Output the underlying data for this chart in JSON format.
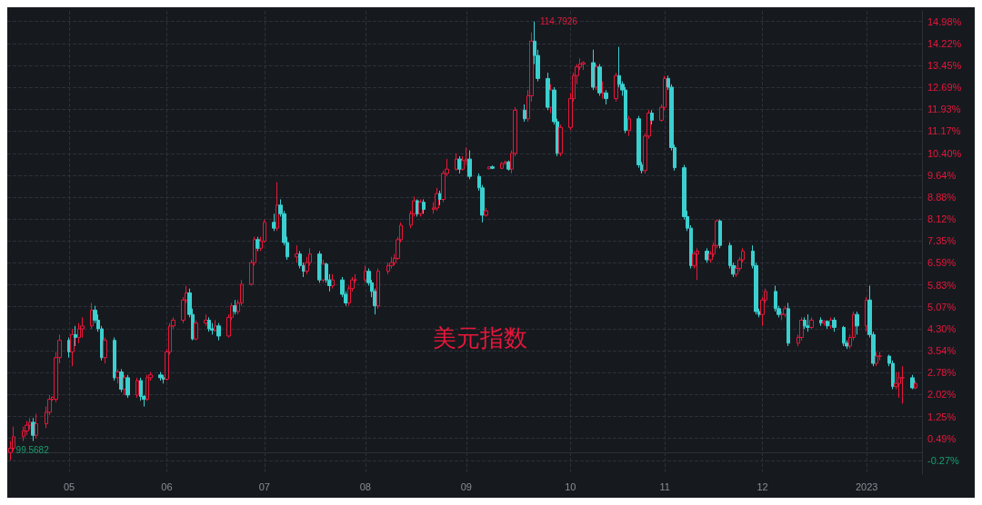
{
  "chart_data": {
    "type": "candlestick",
    "title": "美元指数",
    "x": [
      "2022-04-14",
      "2022-04-15",
      "2022-04-18",
      "2022-04-19",
      "2022-04-20",
      "2022-04-21",
      "2022-04-22",
      "2022-04-25",
      "2022-04-26",
      "2022-04-27",
      "2022-04-28",
      "2022-04-29",
      "2022-05-02",
      "2022-05-03",
      "2022-05-04",
      "2022-05-05",
      "2022-05-06",
      "2022-05-09",
      "2022-05-10",
      "2022-05-11",
      "2022-05-12",
      "2022-05-13",
      "2022-05-16",
      "2022-05-17",
      "2022-05-18",
      "2022-05-19",
      "2022-05-20",
      "2022-05-23",
      "2022-05-24",
      "2022-05-25",
      "2022-05-26",
      "2022-05-27",
      "2022-05-30",
      "2022-05-31",
      "2022-06-01",
      "2022-06-02",
      "2022-06-03",
      "2022-06-06",
      "2022-06-07",
      "2022-06-08",
      "2022-06-09",
      "2022-06-10",
      "2022-06-13",
      "2022-06-14",
      "2022-06-15",
      "2022-06-16",
      "2022-06-17",
      "2022-06-20",
      "2022-06-21",
      "2022-06-22",
      "2022-06-23",
      "2022-06-24",
      "2022-06-27",
      "2022-06-28",
      "2022-06-29",
      "2022-06-30",
      "2022-07-01",
      "2022-07-04",
      "2022-07-05",
      "2022-07-06",
      "2022-07-07",
      "2022-07-08",
      "2022-07-11",
      "2022-07-12",
      "2022-07-13",
      "2022-07-14",
      "2022-07-15",
      "2022-07-18",
      "2022-07-19",
      "2022-07-20",
      "2022-07-21",
      "2022-07-22",
      "2022-07-25",
      "2022-07-26",
      "2022-07-27",
      "2022-07-28",
      "2022-07-29",
      "2022-08-01",
      "2022-08-02",
      "2022-08-03",
      "2022-08-04",
      "2022-08-05",
      "2022-08-08",
      "2022-08-09",
      "2022-08-10",
      "2022-08-11",
      "2022-08-12",
      "2022-08-15",
      "2022-08-16",
      "2022-08-17",
      "2022-08-18",
      "2022-08-19",
      "2022-08-22",
      "2022-08-23",
      "2022-08-24",
      "2022-08-25",
      "2022-08-26",
      "2022-08-29",
      "2022-08-30",
      "2022-08-31",
      "2022-09-01",
      "2022-09-02",
      "2022-09-05",
      "2022-09-06",
      "2022-09-07",
      "2022-09-08",
      "2022-09-09",
      "2022-09-12",
      "2022-09-13",
      "2022-09-14",
      "2022-09-15",
      "2022-09-16",
      "2022-09-19",
      "2022-09-20",
      "2022-09-21",
      "2022-09-22",
      "2022-09-23",
      "2022-09-26",
      "2022-09-27",
      "2022-09-28",
      "2022-09-29",
      "2022-09-30",
      "2022-10-03",
      "2022-10-04",
      "2022-10-05",
      "2022-10-06",
      "2022-10-07",
      "2022-10-10",
      "2022-10-11",
      "2022-10-12",
      "2022-10-13",
      "2022-10-14",
      "2022-10-17",
      "2022-10-18",
      "2022-10-19",
      "2022-10-20",
      "2022-10-21",
      "2022-10-24",
      "2022-10-25",
      "2022-10-26",
      "2022-10-27",
      "2022-10-28",
      "2022-10-31",
      "2022-11-01",
      "2022-11-02",
      "2022-11-03",
      "2022-11-04",
      "2022-11-07",
      "2022-11-08",
      "2022-11-09",
      "2022-11-10",
      "2022-11-11",
      "2022-11-14",
      "2022-11-15",
      "2022-11-16",
      "2022-11-17",
      "2022-11-18",
      "2022-11-21",
      "2022-11-22",
      "2022-11-23",
      "2022-11-24",
      "2022-11-25",
      "2022-11-28",
      "2022-11-29",
      "2022-11-30",
      "2022-12-01",
      "2022-12-02",
      "2022-12-05",
      "2022-12-06",
      "2022-12-07",
      "2022-12-08",
      "2022-12-09",
      "2022-12-12",
      "2022-12-13",
      "2022-12-14",
      "2022-12-15",
      "2022-12-16",
      "2022-12-19",
      "2022-12-20",
      "2022-12-21",
      "2022-12-22",
      "2022-12-23",
      "2022-12-26",
      "2022-12-27",
      "2022-12-28",
      "2022-12-29",
      "2022-12-30",
      "2023-01-02",
      "2023-01-03",
      "2023-01-04",
      "2023-01-05",
      "2023-01-06",
      "2023-01-09",
      "2023-01-10",
      "2023-01-11",
      "2023-01-12",
      "2023-01-13",
      "2023-01-16",
      "2023-01-17"
    ],
    "ohlc": [
      [
        0.0,
        0.4,
        -0.27,
        0.15
      ],
      [
        0.15,
        0.9,
        0.05,
        0.55
      ],
      [
        0.55,
        0.9,
        0.4,
        0.75
      ],
      [
        0.75,
        1.1,
        0.6,
        0.95
      ],
      [
        0.95,
        1.2,
        0.8,
        1.05
      ],
      [
        1.05,
        1.2,
        0.4,
        0.6
      ],
      [
        0.6,
        1.35,
        0.5,
        1.0
      ],
      [
        1.0,
        1.6,
        0.85,
        1.4
      ],
      [
        1.4,
        2.0,
        1.3,
        1.85
      ],
      [
        1.85,
        1.95,
        1.8,
        1.92
      ],
      [
        1.85,
        3.5,
        1.75,
        3.3
      ],
      [
        3.3,
        4.1,
        3.1,
        3.9
      ],
      [
        3.9,
        4.0,
        3.3,
        3.5
      ],
      [
        3.5,
        4.3,
        3.0,
        4.1
      ],
      [
        4.1,
        4.4,
        3.7,
        4.0
      ],
      [
        4.0,
        4.5,
        3.8,
        4.3
      ],
      [
        4.3,
        4.7,
        4.0,
        4.4
      ],
      [
        4.4,
        5.2,
        4.3,
        4.95
      ],
      [
        4.95,
        5.1,
        4.5,
        4.6
      ],
      [
        4.6,
        4.8,
        4.2,
        4.3
      ],
      [
        4.3,
        4.4,
        3.2,
        3.3
      ],
      [
        3.3,
        4.0,
        3.1,
        3.9
      ],
      [
        3.9,
        4.0,
        2.5,
        2.6
      ],
      [
        2.6,
        2.9,
        2.4,
        2.8
      ],
      [
        2.8,
        2.9,
        2.1,
        2.2
      ],
      [
        2.2,
        2.7,
        2.0,
        2.6
      ],
      [
        2.6,
        2.7,
        1.9,
        2.0
      ],
      [
        2.0,
        2.6,
        1.9,
        2.5
      ],
      [
        2.5,
        2.6,
        1.8,
        1.95
      ],
      [
        1.95,
        2.0,
        1.6,
        1.85
      ],
      [
        1.85,
        2.7,
        1.8,
        2.6
      ],
      [
        2.6,
        2.8,
        2.5,
        2.7
      ],
      [
        2.7,
        2.8,
        2.5,
        2.6
      ],
      [
        2.6,
        2.7,
        2.4,
        2.55
      ],
      [
        2.55,
        3.6,
        2.5,
        3.5
      ],
      [
        3.5,
        4.5,
        3.4,
        4.4
      ],
      [
        4.4,
        4.7,
        4.3,
        4.6
      ],
      [
        4.6,
        5.4,
        4.5,
        5.3
      ],
      [
        5.3,
        5.8,
        5.2,
        5.55
      ],
      [
        5.55,
        5.7,
        4.7,
        4.8
      ],
      [
        4.8,
        5.0,
        3.9,
        3.95
      ],
      [
        3.95,
        4.6,
        3.9,
        4.5
      ],
      [
        4.5,
        4.8,
        4.4,
        4.6
      ],
      [
        4.6,
        4.7,
        4.2,
        4.3
      ],
      [
        4.3,
        4.5,
        4.1,
        4.25
      ],
      [
        4.25,
        4.6,
        4.2,
        4.4
      ],
      [
        4.4,
        4.5,
        3.9,
        4.05
      ],
      [
        4.05,
        4.8,
        4.0,
        4.7
      ],
      [
        4.7,
        5.2,
        4.6,
        5.1
      ],
      [
        5.1,
        5.3,
        4.8,
        4.9
      ],
      [
        4.9,
        5.3,
        4.8,
        5.2
      ],
      [
        5.2,
        6.0,
        5.1,
        5.85
      ],
      [
        5.85,
        6.7,
        5.8,
        6.6
      ],
      [
        6.6,
        7.5,
        6.5,
        7.4
      ],
      [
        7.4,
        7.5,
        7.0,
        7.1
      ],
      [
        7.1,
        7.5,
        7.0,
        7.35
      ],
      [
        7.35,
        8.1,
        7.3,
        8.0
      ],
      [
        8.0,
        8.3,
        7.7,
        7.8
      ],
      [
        7.8,
        9.4,
        7.7,
        8.6
      ],
      [
        8.6,
        8.8,
        8.2,
        8.3
      ],
      [
        8.3,
        8.4,
        7.2,
        7.3
      ],
      [
        7.3,
        7.5,
        6.7,
        6.8
      ],
      [
        6.8,
        7.2,
        6.6,
        6.9
      ],
      [
        6.9,
        7.0,
        6.4,
        6.5
      ],
      [
        6.5,
        6.6,
        6.1,
        6.3
      ],
      [
        6.3,
        6.8,
        6.2,
        6.6
      ],
      [
        6.6,
        7.1,
        6.5,
        6.9
      ],
      [
        6.9,
        7.0,
        5.9,
        6.0
      ],
      [
        6.0,
        6.7,
        5.9,
        6.55
      ],
      [
        6.55,
        6.6,
        5.9,
        6.0
      ],
      [
        6.0,
        6.2,
        5.6,
        5.8
      ],
      [
        5.8,
        6.2,
        5.7,
        6.0
      ],
      [
        6.0,
        6.1,
        5.4,
        5.5
      ],
      [
        5.5,
        5.6,
        5.1,
        5.2
      ],
      [
        5.2,
        5.8,
        5.1,
        5.7
      ],
      [
        5.7,
        6.1,
        5.6,
        6.0
      ],
      [
        6.0,
        6.2,
        5.9,
        6.0
      ],
      [
        6.0,
        6.5,
        5.9,
        6.3
      ],
      [
        6.3,
        6.4,
        5.8,
        5.9
      ],
      [
        5.9,
        6.0,
        5.4,
        5.6
      ],
      [
        5.6,
        5.7,
        4.8,
        5.1
      ],
      [
        5.1,
        6.4,
        5.0,
        6.3
      ],
      [
        6.3,
        6.6,
        6.2,
        6.5
      ],
      [
        6.5,
        6.8,
        6.4,
        6.6
      ],
      [
        6.6,
        6.9,
        6.5,
        6.75
      ],
      [
        6.75,
        7.5,
        6.7,
        7.4
      ],
      [
        7.4,
        8.0,
        7.3,
        7.9
      ],
      [
        7.9,
        8.4,
        7.8,
        8.3
      ],
      [
        8.3,
        8.9,
        8.2,
        8.75
      ],
      [
        8.75,
        8.8,
        8.2,
        8.3
      ],
      [
        8.3,
        8.8,
        8.2,
        8.7
      ],
      [
        8.7,
        8.8,
        8.3,
        8.45
      ],
      [
        8.45,
        8.7,
        8.3,
        8.5
      ],
      [
        8.5,
        9.2,
        8.4,
        9.0
      ],
      [
        9.0,
        9.1,
        8.6,
        8.8
      ],
      [
        8.8,
        9.8,
        8.7,
        9.7
      ],
      [
        9.7,
        10.2,
        9.6,
        9.85
      ],
      [
        9.85,
        10.4,
        9.8,
        10.2
      ],
      [
        10.2,
        10.3,
        9.7,
        9.85
      ],
      [
        9.85,
        10.3,
        9.8,
        10.15
      ],
      [
        10.15,
        10.6,
        10.0,
        10.2
      ],
      [
        10.2,
        10.5,
        9.5,
        9.6
      ],
      [
        9.6,
        9.7,
        9.1,
        9.2
      ],
      [
        9.2,
        9.3,
        8.0,
        8.25
      ],
      [
        8.25,
        8.5,
        8.2,
        8.4
      ],
      [
        9.86,
        9.95,
        9.85,
        9.93
      ],
      [
        9.93,
        9.98,
        9.85,
        9.88
      ],
      [
        9.88,
        10.1,
        9.85,
        10.05
      ],
      [
        10.05,
        10.15,
        10.0,
        10.1
      ],
      [
        10.1,
        10.15,
        9.8,
        9.85
      ],
      [
        9.85,
        10.5,
        9.7,
        10.4
      ],
      [
        10.4,
        12.0,
        10.3,
        11.9
      ],
      [
        11.9,
        12.1,
        11.5,
        11.6
      ],
      [
        11.6,
        12.6,
        11.5,
        12.4
      ],
      [
        12.4,
        14.6,
        12.2,
        14.3
      ],
      [
        14.3,
        14.98,
        13.5,
        13.8
      ],
      [
        13.8,
        14.0,
        12.9,
        13.0
      ],
      [
        13.0,
        13.2,
        11.9,
        12.0
      ],
      [
        12.0,
        12.8,
        11.8,
        12.6
      ],
      [
        12.6,
        12.7,
        11.4,
        11.5
      ],
      [
        11.5,
        11.6,
        10.3,
        10.4
      ],
      [
        10.4,
        11.4,
        10.3,
        11.3
      ],
      [
        11.3,
        12.5,
        11.2,
        12.3
      ],
      [
        12.3,
        13.2,
        12.2,
        13.1
      ],
      [
        13.1,
        13.5,
        12.8,
        13.4
      ],
      [
        13.4,
        13.7,
        13.3,
        13.5
      ],
      [
        13.5,
        13.6,
        13.3,
        13.55
      ],
      [
        13.55,
        14.0,
        12.6,
        12.7
      ],
      [
        12.7,
        13.5,
        12.6,
        13.4
      ],
      [
        13.4,
        13.5,
        12.4,
        12.5
      ],
      [
        12.5,
        12.9,
        12.3,
        12.5
      ],
      [
        12.5,
        12.6,
        12.1,
        12.3
      ],
      [
        12.3,
        13.2,
        12.2,
        13.1
      ],
      [
        13.1,
        14.1,
        12.7,
        12.8
      ],
      [
        12.8,
        12.9,
        12.4,
        12.6
      ],
      [
        12.6,
        12.7,
        11.1,
        11.2
      ],
      [
        11.2,
        11.7,
        11.0,
        11.6
      ],
      [
        11.6,
        11.7,
        9.9,
        10.0
      ],
      [
        10.0,
        10.1,
        9.7,
        9.8
      ],
      [
        9.8,
        11.1,
        9.7,
        11.0
      ],
      [
        11.0,
        11.9,
        10.9,
        11.8
      ],
      [
        11.8,
        11.9,
        11.4,
        11.55
      ],
      [
        11.55,
        12.1,
        11.5,
        12.0
      ],
      [
        12.0,
        13.1,
        11.9,
        13.0
      ],
      [
        13.0,
        13.1,
        12.6,
        12.7
      ],
      [
        12.7,
        12.8,
        10.5,
        10.6
      ],
      [
        10.6,
        10.7,
        9.8,
        9.9
      ],
      [
        9.9,
        10.0,
        8.1,
        8.2
      ],
      [
        8.2,
        8.4,
        7.7,
        7.8
      ],
      [
        7.8,
        7.9,
        6.4,
        6.5
      ],
      [
        6.5,
        7.0,
        6.4,
        6.9
      ],
      [
        6.9,
        7.1,
        6.0,
        7.0
      ],
      [
        7.0,
        7.1,
        6.6,
        6.7
      ],
      [
        6.7,
        7.0,
        6.6,
        6.9
      ],
      [
        6.9,
        7.3,
        6.8,
        7.2
      ],
      [
        7.2,
        8.1,
        7.1,
        8.05
      ],
      [
        8.05,
        8.1,
        7.1,
        7.2
      ],
      [
        7.2,
        7.3,
        6.4,
        6.5
      ],
      [
        6.5,
        6.6,
        6.1,
        6.2
      ],
      [
        6.2,
        6.5,
        6.1,
        6.4
      ],
      [
        6.4,
        6.8,
        6.3,
        6.7
      ],
      [
        6.7,
        7.1,
        6.6,
        7.0
      ],
      [
        7.0,
        7.2,
        6.4,
        6.5
      ],
      [
        6.5,
        6.6,
        4.8,
        4.9
      ],
      [
        4.9,
        5.0,
        4.7,
        4.8
      ],
      [
        4.8,
        5.4,
        4.4,
        5.3
      ],
      [
        5.3,
        5.7,
        5.2,
        5.6
      ],
      [
        5.6,
        5.8,
        4.9,
        5.0
      ],
      [
        5.0,
        5.1,
        4.7,
        4.8
      ],
      [
        4.8,
        4.9,
        4.6,
        4.8
      ],
      [
        4.8,
        5.1,
        4.7,
        5.0
      ],
      [
        5.0,
        5.2,
        3.7,
        3.8
      ],
      [
        3.8,
        4.1,
        3.7,
        4.0
      ],
      [
        4.0,
        4.7,
        3.9,
        4.6
      ],
      [
        4.6,
        4.7,
        4.3,
        4.4
      ],
      [
        4.4,
        4.8,
        4.2,
        4.35
      ],
      [
        4.35,
        4.7,
        4.3,
        4.6
      ],
      [
        4.6,
        4.7,
        4.4,
        4.5
      ],
      [
        4.5,
        4.6,
        4.4,
        4.56
      ],
      [
        4.56,
        4.6,
        4.3,
        4.4
      ],
      [
        4.4,
        4.7,
        4.3,
        4.6
      ],
      [
        4.6,
        4.7,
        4.2,
        4.35
      ],
      [
        4.35,
        4.4,
        3.7,
        3.8
      ],
      [
        3.8,
        3.9,
        3.6,
        3.7
      ],
      [
        3.7,
        4.1,
        3.6,
        4.0
      ],
      [
        4.0,
        4.9,
        3.9,
        4.8
      ],
      [
        4.8,
        4.9,
        4.1,
        4.4
      ],
      [
        4.4,
        5.4,
        4.2,
        5.3
      ],
      [
        5.3,
        5.8,
        4.0,
        4.1
      ],
      [
        4.1,
        4.2,
        3.0,
        3.1
      ],
      [
        3.1,
        3.5,
        3.0,
        3.35
      ],
      [
        3.35,
        3.5,
        3.2,
        3.35
      ],
      [
        3.35,
        3.4,
        3.0,
        3.1
      ],
      [
        3.1,
        3.2,
        2.2,
        2.3
      ],
      [
        2.3,
        2.8,
        2.2,
        2.4
      ],
      [
        2.4,
        2.8,
        1.9,
        2.6
      ],
      [
        2.6,
        3.0,
        1.7,
        2.6
      ],
      [
        2.6,
        2.7,
        2.2,
        2.25
      ],
      [
        2.25,
        2.5,
        2.2,
        2.4
      ]
    ],
    "xlim": [
      "2022-04-13",
      "2023-01-19"
    ],
    "ylim": [
      -0.75,
      15.35
    ],
    "yticks": [
      {
        "value": -0.27,
        "label": "-0.27%"
      },
      {
        "value": 0.49,
        "label": "0.49%"
      },
      {
        "value": 1.25,
        "label": "1.25%"
      },
      {
        "value": 2.02,
        "label": "2.02%"
      },
      {
        "value": 2.78,
        "label": "2.78%"
      },
      {
        "value": 3.54,
        "label": "3.54%"
      },
      {
        "value": 4.3,
        "label": "4.30%"
      },
      {
        "value": 5.07,
        "label": "5.07%"
      },
      {
        "value": 5.83,
        "label": "5.83%"
      },
      {
        "value": 6.59,
        "label": "6.59%"
      },
      {
        "value": 7.35,
        "label": "7.35%"
      },
      {
        "value": 8.12,
        "label": "8.12%"
      },
      {
        "value": 8.88,
        "label": "8.88%"
      },
      {
        "value": 9.64,
        "label": "9.64%"
      },
      {
        "value": 10.4,
        "label": "10.40%"
      },
      {
        "value": 11.17,
        "label": "11.17%"
      },
      {
        "value": 11.93,
        "label": "11.93%"
      },
      {
        "value": 12.69,
        "label": "12.69%"
      },
      {
        "value": 13.45,
        "label": "13.45%"
      },
      {
        "value": 14.22,
        "label": "14.22%"
      },
      {
        "value": 14.98,
        "label": "14.98%"
      }
    ],
    "xticks": [
      {
        "value": "2022-05-02",
        "label": "05"
      },
      {
        "value": "2022-06-01",
        "label": "06"
      },
      {
        "value": "2022-07-01",
        "label": "07"
      },
      {
        "value": "2022-08-01",
        "label": "08"
      },
      {
        "value": "2022-09-01",
        "label": "09"
      },
      {
        "value": "2022-10-03",
        "label": "10"
      },
      {
        "value": "2022-11-01",
        "label": "11"
      },
      {
        "value": "2022-12-01",
        "label": "12"
      },
      {
        "value": "2023-01-02",
        "label": "2023"
      }
    ],
    "annotations": [
      "114.7926",
      "99.5682"
    ],
    "grid": true
  }
}
